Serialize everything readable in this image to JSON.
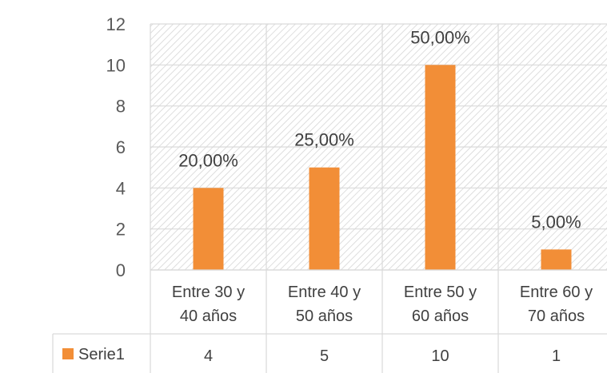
{
  "chart_data": {
    "type": "bar",
    "title": "",
    "xlabel": "",
    "ylabel": "",
    "ylim": [
      0,
      12
    ],
    "yticks": [
      0,
      2,
      4,
      6,
      8,
      10,
      12
    ],
    "grid": true,
    "categories": [
      [
        "Entre 30 y",
        "40 años"
      ],
      [
        "Entre 40 y",
        "50 años"
      ],
      [
        "Entre 50 y",
        "60 años"
      ],
      [
        "Entre 60 y",
        "70 años"
      ]
    ],
    "series": [
      {
        "name": "Serie1",
        "color": "#F28E37",
        "values": [
          4,
          5,
          10,
          1
        ],
        "data_labels": [
          "20,00%",
          "25,00%",
          "50,00%",
          "5,00%"
        ]
      }
    ],
    "legend": "data-table-bottom",
    "data_table": true
  }
}
